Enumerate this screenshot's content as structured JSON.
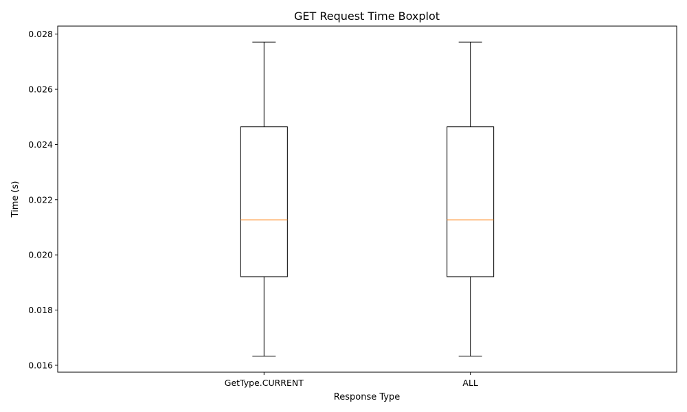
{
  "chart_data": {
    "type": "boxplot",
    "title": "GET Request Time Boxplot",
    "xlabel": "Response Type",
    "ylabel": "Time (s)",
    "categories": [
      "GetType.CURRENT",
      "ALL"
    ],
    "boxes": [
      {
        "category": "GetType.CURRENT",
        "whisker_low": 0.01633,
        "q1": 0.01921,
        "median": 0.02127,
        "q3": 0.02464,
        "whisker_high": 0.02771
      },
      {
        "category": "ALL",
        "whisker_low": 0.01633,
        "q1": 0.01921,
        "median": 0.02127,
        "q3": 0.02464,
        "whisker_high": 0.02771
      }
    ],
    "ylim": [
      0.01575,
      0.02829
    ],
    "yticks": [
      "0.016",
      "0.018",
      "0.020",
      "0.022",
      "0.024",
      "0.026",
      "0.028"
    ],
    "ytick_values": [
      0.016,
      0.018,
      0.02,
      0.022,
      0.024,
      0.026,
      0.028
    ],
    "grid": false,
    "colors": {
      "box": "#000000",
      "median": "#ff7f0e",
      "whisker": "#000000"
    }
  }
}
